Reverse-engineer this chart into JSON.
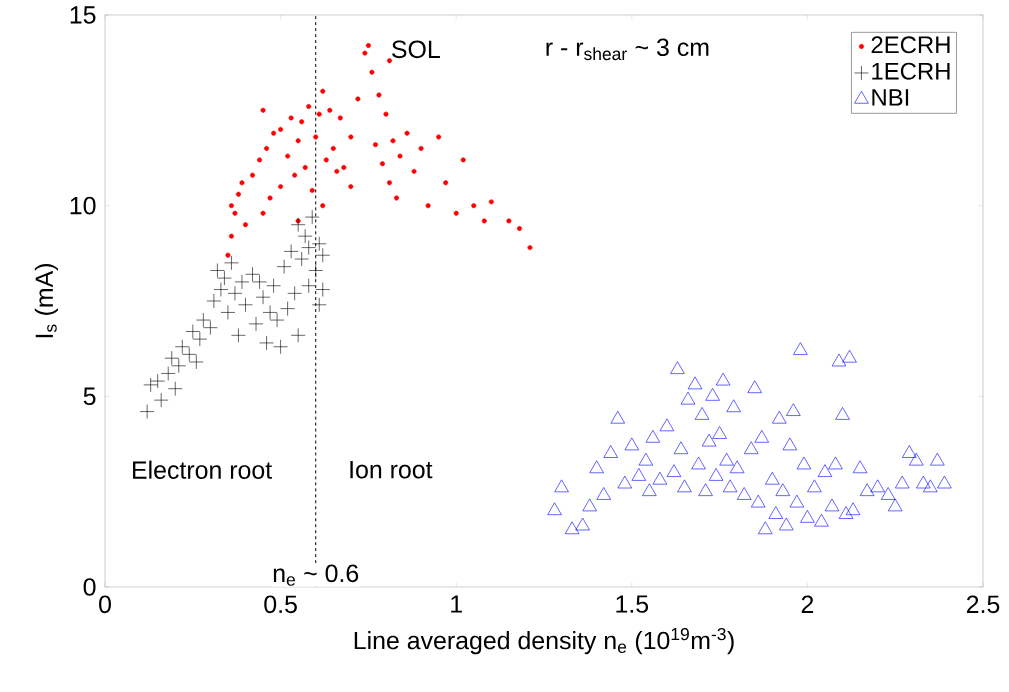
{
  "chart_data": {
    "type": "scatter",
    "xlabel": "Line averaged density n$_{e}$ (10$^{19}$m$^{-3}$)",
    "ylabel": "I$_{s}$ (mA)",
    "xlim": [
      0,
      2.5
    ],
    "ylim": [
      0,
      15
    ],
    "xticks": [
      0,
      0.5,
      1,
      1.5,
      2,
      2.5
    ],
    "yticks": [
      0,
      5,
      10,
      15
    ],
    "grid": false,
    "legend": "top right",
    "annotations": [
      "SOL",
      "r - r$_{shear}$ ~ 3 cm",
      "Electron root",
      "Ion root"
    ],
    "ref_lines": [
      {
        "axis": "x",
        "value": 0.6,
        "label": "n$_{e}$ ~ 0.6",
        "color": "#000000",
        "line_style": "dashed"
      }
    ],
    "series": [
      {
        "name": "2ECRH",
        "color": "#ff0000",
        "marker": "circle",
        "x": [
          0.35,
          0.36,
          0.37,
          0.38,
          0.36,
          0.39,
          0.4,
          0.42,
          0.44,
          0.45,
          0.46,
          0.47,
          0.48,
          0.5,
          0.5,
          0.52,
          0.53,
          0.54,
          0.55,
          0.56,
          0.57,
          0.58,
          0.59,
          0.6,
          0.61,
          0.62,
          0.62,
          0.63,
          0.64,
          0.65,
          0.66,
          0.67,
          0.68,
          0.7,
          0.7,
          0.72,
          0.74,
          0.75,
          0.76,
          0.77,
          0.78,
          0.79,
          0.8,
          0.81,
          0.81,
          0.82,
          0.83,
          0.84,
          0.86,
          0.88,
          0.9,
          0.92,
          0.95,
          0.97,
          1.0,
          1.02,
          1.05,
          1.08,
          1.1,
          1.15,
          1.18,
          1.21,
          0.45,
          0.55
        ],
        "values": [
          8.7,
          9.2,
          9.8,
          10.3,
          10.0,
          10.6,
          9.5,
          10.8,
          11.2,
          12.5,
          11.5,
          10.2,
          11.9,
          12.0,
          10.5,
          11.3,
          12.3,
          10.8,
          11.7,
          12.2,
          11.0,
          12.6,
          10.4,
          11.8,
          12.4,
          13.0,
          10.0,
          11.2,
          12.5,
          11.5,
          10.9,
          12.3,
          11.0,
          10.5,
          11.8,
          12.8,
          14.0,
          14.2,
          13.5,
          11.6,
          12.9,
          11.1,
          12.4,
          13.8,
          10.6,
          11.7,
          10.2,
          11.3,
          11.9,
          10.9,
          11.5,
          10.0,
          11.8,
          10.6,
          9.8,
          11.2,
          10.0,
          9.6,
          10.1,
          9.6,
          9.4,
          8.9,
          9.8,
          9.6
        ]
      },
      {
        "name": "1ECRH",
        "color": "#000000",
        "marker": "cross",
        "x": [
          0.12,
          0.13,
          0.15,
          0.16,
          0.18,
          0.19,
          0.2,
          0.21,
          0.22,
          0.24,
          0.25,
          0.26,
          0.27,
          0.28,
          0.3,
          0.31,
          0.32,
          0.33,
          0.34,
          0.35,
          0.36,
          0.37,
          0.38,
          0.39,
          0.4,
          0.42,
          0.43,
          0.45,
          0.46,
          0.48,
          0.49,
          0.5,
          0.51,
          0.52,
          0.53,
          0.54,
          0.55,
          0.55,
          0.56,
          0.57,
          0.58,
          0.58,
          0.59,
          0.6,
          0.61,
          0.61,
          0.62,
          0.62,
          0.44,
          0.47
        ],
        "values": [
          4.6,
          5.3,
          5.4,
          4.9,
          5.6,
          6.0,
          5.2,
          5.8,
          6.3,
          6.1,
          6.7,
          5.9,
          6.5,
          7.0,
          6.8,
          7.5,
          8.3,
          7.8,
          8.1,
          7.2,
          8.5,
          7.7,
          6.6,
          8.0,
          7.4,
          8.2,
          6.9,
          7.6,
          6.4,
          7.9,
          7.0,
          6.3,
          8.4,
          7.3,
          8.8,
          7.7,
          9.5,
          6.6,
          8.6,
          9.2,
          7.9,
          8.9,
          9.7,
          8.3,
          9.0,
          7.4,
          8.7,
          7.8,
          8.0,
          7.2
        ]
      },
      {
        "name": "NBI",
        "color": "#0000ff",
        "marker": "triangle",
        "x": [
          1.28,
          1.3,
          1.33,
          1.36,
          1.38,
          1.4,
          1.42,
          1.44,
          1.46,
          1.48,
          1.5,
          1.52,
          1.54,
          1.55,
          1.56,
          1.58,
          1.6,
          1.62,
          1.63,
          1.64,
          1.65,
          1.66,
          1.68,
          1.69,
          1.7,
          1.71,
          1.72,
          1.73,
          1.74,
          1.75,
          1.76,
          1.77,
          1.78,
          1.79,
          1.8,
          1.82,
          1.84,
          1.85,
          1.86,
          1.87,
          1.88,
          1.9,
          1.91,
          1.92,
          1.93,
          1.94,
          1.95,
          1.96,
          1.97,
          1.98,
          1.99,
          2.0,
          2.02,
          2.04,
          2.05,
          2.07,
          2.08,
          2.09,
          2.1,
          2.11,
          2.12,
          2.13,
          2.15,
          2.17,
          2.2,
          2.23,
          2.25,
          2.27,
          2.29,
          2.31,
          2.33,
          2.35,
          2.37,
          2.39
        ],
        "values": [
          2.0,
          2.6,
          1.5,
          1.6,
          2.1,
          3.1,
          2.4,
          3.5,
          4.4,
          2.7,
          3.7,
          2.9,
          3.3,
          2.5,
          3.9,
          2.8,
          4.2,
          3.0,
          5.7,
          3.6,
          2.6,
          4.9,
          5.3,
          3.2,
          4.5,
          2.5,
          3.8,
          5.0,
          2.9,
          4.0,
          5.4,
          3.3,
          2.6,
          4.7,
          3.1,
          2.4,
          3.6,
          5.2,
          2.2,
          3.9,
          1.5,
          2.8,
          1.9,
          4.4,
          2.5,
          1.6,
          3.7,
          4.6,
          2.2,
          6.2,
          3.2,
          1.8,
          2.6,
          1.7,
          3.0,
          2.1,
          3.2,
          5.9,
          4.5,
          1.9,
          6.0,
          2.0,
          3.1,
          2.5,
          2.6,
          2.4,
          2.1,
          2.7,
          3.5,
          3.3,
          2.7,
          2.6,
          3.3,
          2.7
        ]
      }
    ]
  }
}
